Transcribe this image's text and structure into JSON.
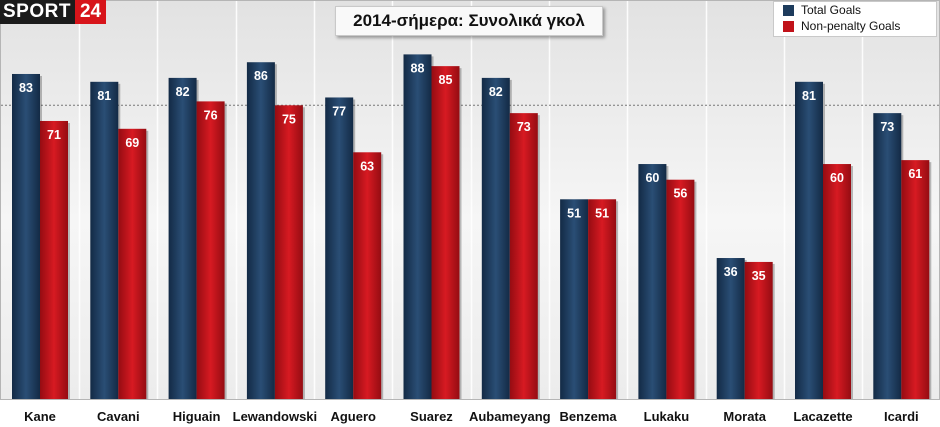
{
  "brand": {
    "name": "SPORT",
    "number": "24"
  },
  "colors": {
    "total": "#1d3b5c",
    "nonpenalty": "#c1121a",
    "logo_red": "#d7141a"
  },
  "chart_data": {
    "type": "bar",
    "title": "2014-σήμερα: Συνολικά γκολ",
    "categories": [
      "Kane",
      "Cavani",
      "Higuain",
      "Lewandowski",
      "Aguero",
      "Suarez",
      "Aubameyang",
      "Benzema",
      "Lukaku",
      "Morata",
      "Lacazette",
      "Icardi"
    ],
    "series": [
      {
        "name": "Total Goals",
        "values": [
          83,
          81,
          82,
          86,
          77,
          88,
          82,
          51,
          60,
          36,
          81,
          73
        ]
      },
      {
        "name": "Non-penalty Goals",
        "values": [
          71,
          69,
          76,
          75,
          63,
          85,
          73,
          51,
          56,
          35,
          60,
          61
        ]
      }
    ],
    "ylim": [
      0,
      100
    ],
    "legend": "top-right",
    "grid": false,
    "reference_line": 75
  }
}
